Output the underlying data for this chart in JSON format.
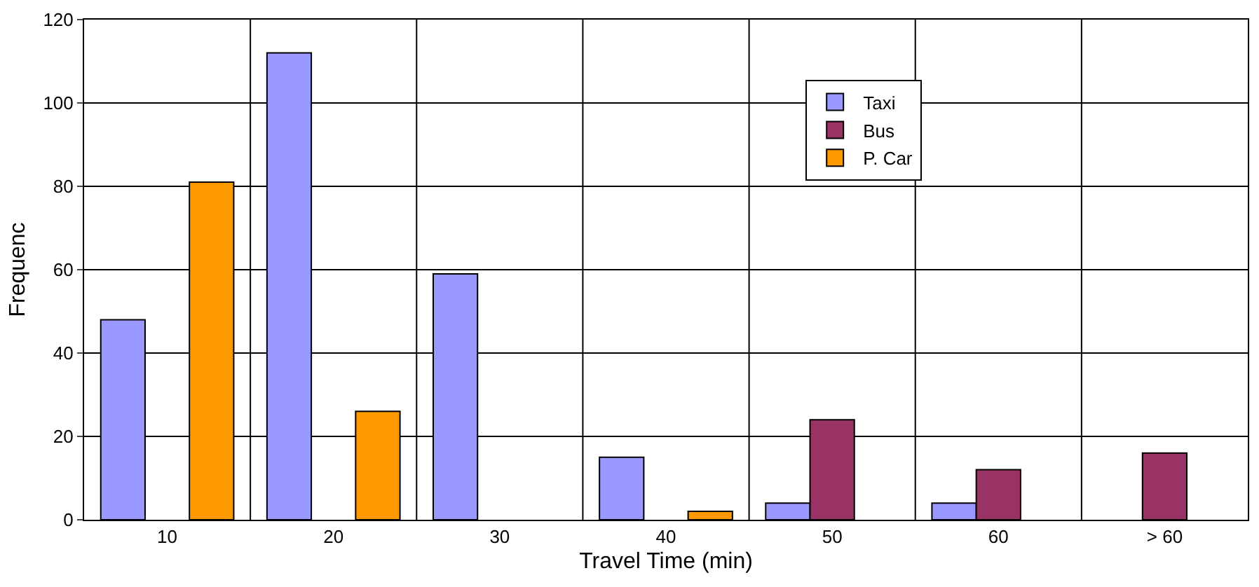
{
  "chart_data": {
    "type": "bar",
    "xlabel": "Travel Time (min)",
    "ylabel": "Frequenc",
    "categories": [
      "10",
      "20",
      "30",
      "40",
      "50",
      "60",
      "> 60"
    ],
    "series": [
      {
        "name": "Taxi",
        "color": "#9999ff",
        "values": [
          48,
          112,
          59,
          15,
          4,
          4,
          null
        ]
      },
      {
        "name": "Bus",
        "color": "#993366",
        "values": [
          null,
          null,
          null,
          null,
          24,
          12,
          16
        ]
      },
      {
        "name": "P. Car",
        "color": "#ff9900",
        "values": [
          81,
          26,
          null,
          2,
          null,
          null,
          null
        ]
      }
    ],
    "ylim": [
      0,
      120
    ],
    "yticks": [
      0,
      20,
      40,
      60,
      80,
      100,
      120
    ],
    "grid": true,
    "legend": "top right"
  }
}
